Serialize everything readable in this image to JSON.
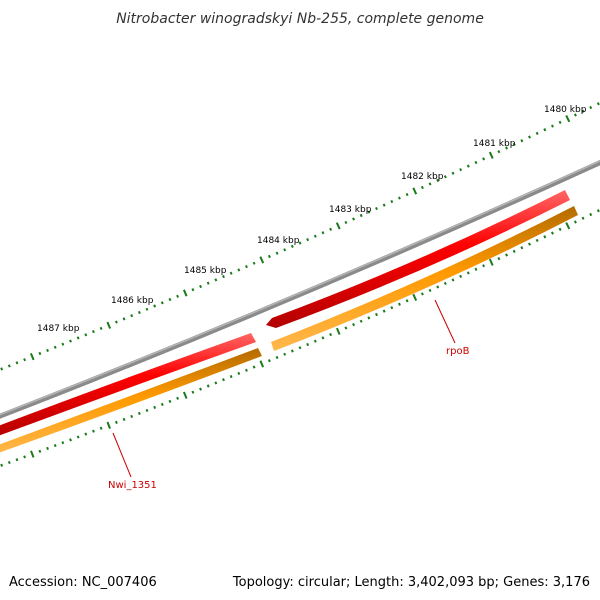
{
  "title": "Nitrobacter winogradskyi Nb-255, complete genome",
  "footer": {
    "accession": "Accession: NC_007406",
    "info": "Topology: circular; Length: 3,402,093 bp; Genes: 3,176"
  },
  "scale": {
    "labels": [
      "1480 kbp",
      "1481 kbp",
      "1482 kbp",
      "1483 kbp",
      "1484 kbp",
      "1485 kbp",
      "1486 kbp",
      "1487 kbp"
    ]
  },
  "genes": [
    {
      "name": "rpoB",
      "strand": "reverse"
    },
    {
      "name": "Nwi_1351",
      "strand": "reverse"
    }
  ],
  "colors": {
    "backbone": "#8a8a8a",
    "gene": "#ee0000",
    "cds": "#ff9900",
    "ticks": "#1a7a1a",
    "label": "#cc0000"
  }
}
